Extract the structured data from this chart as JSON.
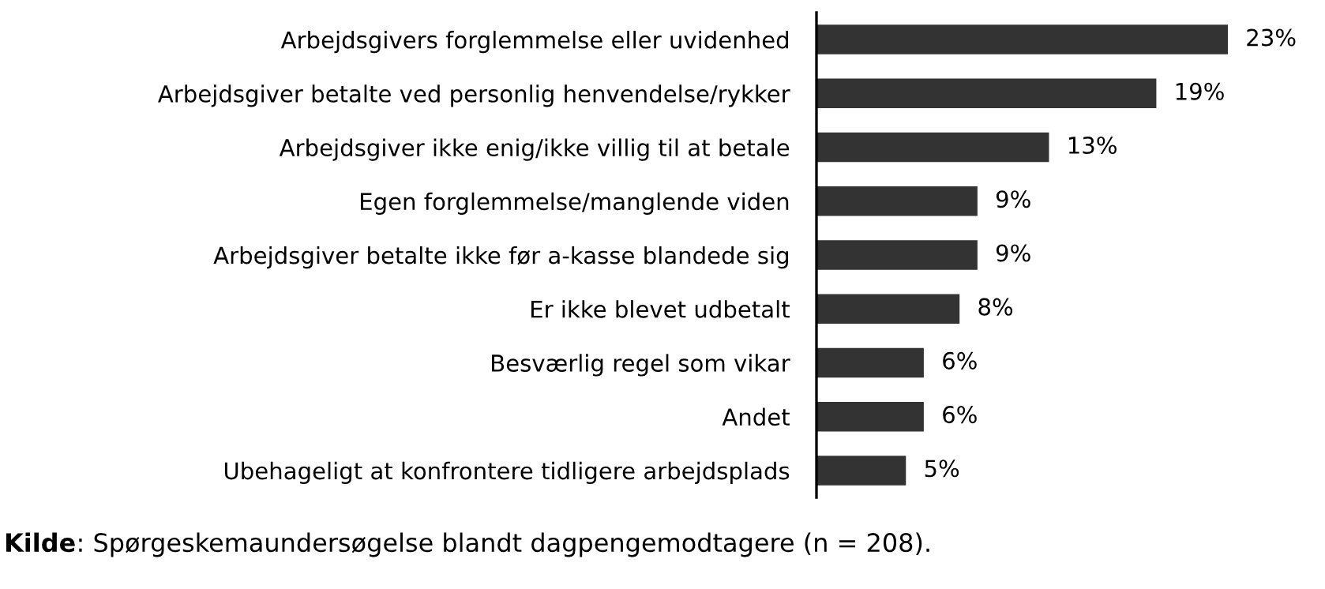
{
  "chart_data": {
    "type": "bar",
    "orientation": "horizontal",
    "categories": [
      "Arbejdsgivers forglemmelse eller uvidenhed",
      "Arbejdsgiver betalte ved personlig henvendelse/rykker",
      "Arbejdsgiver ikke enig/ikke villig til at betale",
      "Egen forglemmelse/manglende viden",
      "Arbejdsgiver betalte ikke før a-kasse blandede sig",
      "Er ikke blevet udbetalt",
      "Besværlig regel som vikar",
      "Andet",
      "Ubehageligt at konfrontere tidligere arbejdsplads"
    ],
    "values": [
      23,
      19,
      13,
      9,
      9,
      8,
      6,
      6,
      5
    ],
    "value_labels": [
      "23%",
      "19%",
      "13%",
      "9%",
      "9%",
      "8%",
      "6%",
      "6%",
      "5%"
    ],
    "color": "#333333",
    "tick_labels": "y",
    "annotations": [
      "Kilde: Spørgeskemaundersøgelse blandt dagpengemodtagere (n = 208)."
    ]
  }
}
